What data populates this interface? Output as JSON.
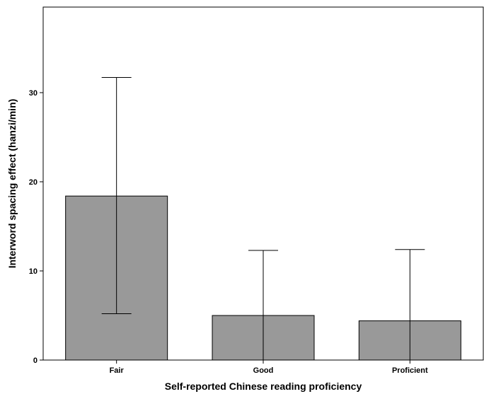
{
  "chart_data": {
    "type": "bar",
    "title": "",
    "xlabel": "Self-reported Chinese reading proficiency",
    "ylabel": "Interword spacing effect (hanzi/min)",
    "categories": [
      "Fair",
      "Good",
      "Proficient"
    ],
    "values": [
      18.4,
      5.0,
      4.4
    ],
    "error_low": [
      5.2,
      0.0,
      0.0
    ],
    "error_high": [
      31.7,
      12.3,
      12.4
    ],
    "ylim": [
      0,
      39.6
    ],
    "yticks": [
      0,
      10,
      20,
      30
    ],
    "grid": false,
    "legend": "none",
    "bar_color": "#999999",
    "bar_edge_color": "#000000"
  }
}
